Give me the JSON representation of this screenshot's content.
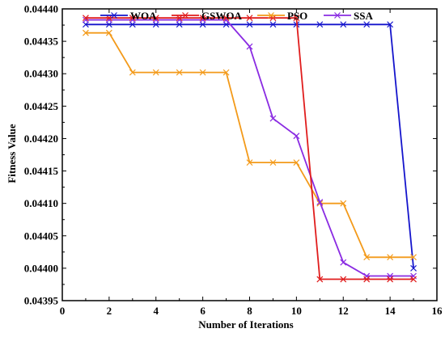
{
  "chart_data": {
    "type": "line",
    "xlabel": "Number of Iterations",
    "ylabel": "Fitness Value",
    "xlim": [
      0,
      16
    ],
    "ylim": [
      0.04395,
      0.0444
    ],
    "xticks": [
      "0",
      "2",
      "4",
      "6",
      "8",
      "10",
      "12",
      "14",
      "16"
    ],
    "yticks": [
      "0.04395",
      "0.04400",
      "0.04405",
      "0.04410",
      "0.04415",
      "0.04420",
      "0.04425",
      "0.04430",
      "0.04435",
      "0.04440"
    ],
    "grid": false,
    "legend_position": "top",
    "marker": "x",
    "x": [
      1,
      2,
      3,
      4,
      5,
      6,
      7,
      8,
      9,
      10,
      11,
      12,
      13,
      14,
      15
    ],
    "series": [
      {
        "name": "WOA",
        "color": "#1515cc",
        "values": [
          0.044376,
          0.044376,
          0.044376,
          0.044376,
          0.044376,
          0.044376,
          0.044376,
          0.044376,
          0.044376,
          0.044376,
          0.044376,
          0.044376,
          0.044376,
          0.044376,
          0.044
        ]
      },
      {
        "name": "GSWOA",
        "color": "#e01d1d",
        "values": [
          0.044386,
          0.044386,
          0.044386,
          0.044386,
          0.044386,
          0.044386,
          0.044386,
          0.044386,
          0.044386,
          0.044386,
          0.043983,
          0.043983,
          0.043983,
          0.043983,
          0.043983
        ]
      },
      {
        "name": "PSO",
        "color": "#f39a1a",
        "values": [
          0.044363,
          0.044363,
          0.044302,
          0.044302,
          0.044302,
          0.044302,
          0.044302,
          0.044163,
          0.044163,
          0.044163,
          0.0441,
          0.0441,
          0.044017,
          0.044017,
          0.044017
        ]
      },
      {
        "name": "SSA",
        "color": "#8a2be2",
        "values": [
          0.044383,
          0.044383,
          0.044383,
          0.044383,
          0.044383,
          0.044383,
          0.044383,
          0.044342,
          0.044231,
          0.044204,
          0.044102,
          0.044009,
          0.043988,
          0.043988,
          0.043988
        ]
      }
    ]
  }
}
